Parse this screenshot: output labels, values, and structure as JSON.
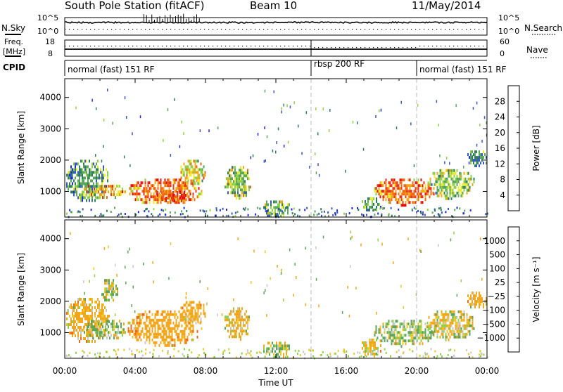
{
  "header": {
    "station": "South Pole Station (fitACF)",
    "beam": "Beam 10",
    "date": "11/May/2014"
  },
  "top_panels": {
    "nsky": {
      "label": "N.Sky",
      "ticks": [
        "10^5",
        "10^0"
      ]
    },
    "nsearch": {
      "label": "N.Search",
      "ticks": [
        "10^5",
        "10^0"
      ]
    },
    "freq": {
      "label_line1": "Freq.",
      "label_line2": "[MHz]",
      "ticks": [
        "18",
        "8"
      ]
    },
    "nave": {
      "label": "Nave",
      "ticks": [
        "60",
        "0"
      ]
    },
    "cpid": {
      "label": "CPID",
      "segments": [
        {
          "start_h": 0,
          "end_h": 14,
          "text": "normal (fast) 151 RF"
        },
        {
          "start_h": 14,
          "end_h": 20,
          "text": "rbsp 200 RF"
        },
        {
          "start_h": 20,
          "end_h": 24,
          "text": "normal (fast) 151 RF"
        }
      ]
    }
  },
  "chart_data": [
    {
      "type": "heatmap",
      "quantity": "Power",
      "ylabel": "Slant Range [km]",
      "xlabel": "",
      "x_range_hours": [
        0,
        24
      ],
      "ylim": [
        180,
        4600
      ],
      "yticks": [
        1000,
        2000,
        3000,
        4000
      ],
      "colorbar": {
        "label": "Power [dB]",
        "range": [
          0,
          32
        ],
        "ticks": [
          "4",
          "8",
          "12",
          "16",
          "20",
          "24",
          "28"
        ],
        "colors": [
          "#1e2bd6",
          "#3a58bd",
          "#2f7d5c",
          "#5aa65c",
          "#8fd24a",
          "#ecec2c",
          "#f2a61c",
          "#ef6a10",
          "#e8361b",
          "#e01010"
        ]
      },
      "mode_change_hours": [
        14,
        20
      ],
      "echo_regions": [
        {
          "t": [
            0.0,
            2.5
          ],
          "r": [
            700,
            2100
          ],
          "value": 10
        },
        {
          "t": [
            1.0,
            3.5
          ],
          "r": [
            800,
            1300
          ],
          "value": 22
        },
        {
          "t": [
            3.5,
            7.8
          ],
          "r": [
            600,
            1500
          ],
          "value": 24
        },
        {
          "t": [
            5.0,
            7.0
          ],
          "r": [
            700,
            1100
          ],
          "value": 27
        },
        {
          "t": [
            6.5,
            8.0
          ],
          "r": [
            1200,
            2100
          ],
          "value": 18
        },
        {
          "t": [
            9.0,
            10.6
          ],
          "r": [
            800,
            1900
          ],
          "value": 14
        },
        {
          "t": [
            11.2,
            12.8
          ],
          "r": [
            200,
            800
          ],
          "value": 13
        },
        {
          "t": [
            16.8,
            18.0
          ],
          "r": [
            400,
            900
          ],
          "value": 12
        },
        {
          "t": [
            17.5,
            21.0
          ],
          "r": [
            600,
            1500
          ],
          "value": 24
        },
        {
          "t": [
            20.5,
            23.3
          ],
          "r": [
            800,
            1800
          ],
          "value": 14
        },
        {
          "t": [
            22.8,
            24.0
          ],
          "r": [
            1800,
            2400
          ],
          "value": 7
        }
      ]
    },
    {
      "type": "heatmap",
      "quantity": "Velocity",
      "ylabel": "Slant Range [km]",
      "xlabel": "Time UT",
      "x_range_hours": [
        0,
        24
      ],
      "ylim": [
        180,
        4600
      ],
      "yticks": [
        1000,
        2000,
        3000,
        4000
      ],
      "xticks": [
        "00:00",
        "04:00",
        "08:00",
        "12:00",
        "16:00",
        "20:00",
        "00:00"
      ],
      "colorbar": {
        "label": "Velocity [m s⁻¹]",
        "ticks": [
          "1000",
          "500",
          "100",
          "25",
          "−25",
          "−100",
          "−500",
          "−1000"
        ],
        "colors": [
          "#1e2bd6",
          "#3a58bd",
          "#2f7d5c",
          "#5aa65c",
          "#8fd24a",
          "#c8c8c8",
          "#ecc82c",
          "#f2a61c",
          "#ef6a10",
          "#e8361b",
          "#e01010"
        ]
      },
      "mode_change_hours": [
        14,
        20
      ],
      "echo_regions": [
        {
          "t": [
            0.0,
            2.5
          ],
          "r": [
            700,
            2200
          ],
          "value": -200
        },
        {
          "t": [
            1.0,
            3.5
          ],
          "r": [
            800,
            1500
          ],
          "value": 60
        },
        {
          "t": [
            2.0,
            3.0
          ],
          "r": [
            2000,
            2800
          ],
          "value": 0
        },
        {
          "t": [
            3.5,
            7.8
          ],
          "r": [
            600,
            1800
          ],
          "value": -300
        },
        {
          "t": [
            6.5,
            8.0
          ],
          "r": [
            1300,
            2100
          ],
          "value": -200
        },
        {
          "t": [
            9.0,
            10.6
          ],
          "r": [
            800,
            1900
          ],
          "value": -150
        },
        {
          "t": [
            11.2,
            12.8
          ],
          "r": [
            200,
            800
          ],
          "value": 80
        },
        {
          "t": [
            16.8,
            18.0
          ],
          "r": [
            300,
            900
          ],
          "value": -150
        },
        {
          "t": [
            17.5,
            21.0
          ],
          "r": [
            600,
            1500
          ],
          "value": 60
        },
        {
          "t": [
            20.5,
            23.3
          ],
          "r": [
            800,
            1800
          ],
          "value": -60
        },
        {
          "t": [
            22.8,
            24.0
          ],
          "r": [
            1800,
            2400
          ],
          "value": -200
        }
      ]
    }
  ]
}
